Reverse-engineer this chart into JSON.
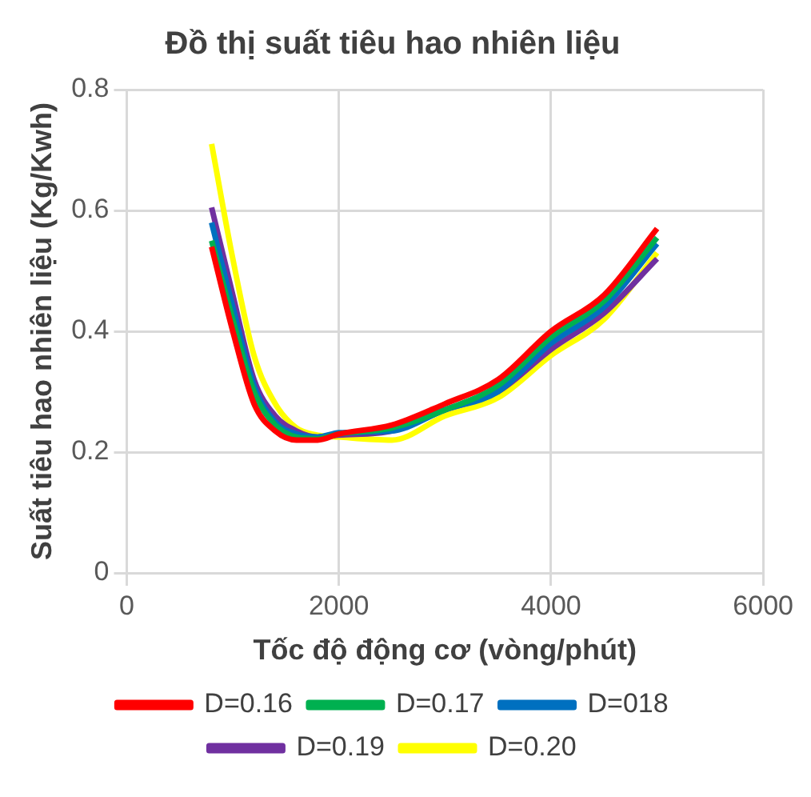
{
  "chart_data": {
    "type": "line",
    "title": "Đồ thị suất tiêu hao nhiên liệu",
    "xlabel": "Tốc độ động cơ (vòng/phút)",
    "ylabel": "Suất tiêu hao nhiên liệu (Kg/Kwh)",
    "x": [
      800,
      1000,
      1200,
      1400,
      1600,
      1800,
      2000,
      2500,
      3000,
      3500,
      4000,
      4500,
      5000
    ],
    "series": [
      {
        "name": "D=0.16",
        "color": "#ff0000",
        "values": [
          0.54,
          0.4,
          0.28,
          0.235,
          0.22,
          0.22,
          0.23,
          0.245,
          0.28,
          0.32,
          0.4,
          0.46,
          0.57
        ]
      },
      {
        "name": "D=0.17",
        "color": "#00b050",
        "values": [
          0.55,
          0.42,
          0.3,
          0.245,
          0.225,
          0.222,
          0.23,
          0.24,
          0.27,
          0.31,
          0.39,
          0.45,
          0.555
        ]
      },
      {
        "name": "D=018",
        "color": "#0070c0",
        "values": [
          0.58,
          0.44,
          0.31,
          0.25,
          0.23,
          0.225,
          0.232,
          0.235,
          0.27,
          0.3,
          0.38,
          0.44,
          0.545
        ]
      },
      {
        "name": "D=0.19",
        "color": "#7030a0",
        "values": [
          0.605,
          0.46,
          0.32,
          0.26,
          0.235,
          0.225,
          0.228,
          0.235,
          0.27,
          0.3,
          0.37,
          0.43,
          0.52
        ]
      },
      {
        "name": "D=0.20",
        "color": "#ffff00",
        "values": [
          0.71,
          0.52,
          0.36,
          0.28,
          0.24,
          0.228,
          0.225,
          0.22,
          0.26,
          0.29,
          0.36,
          0.42,
          0.53
        ]
      }
    ],
    "xlim": [
      0,
      6000
    ],
    "xticks": [
      0,
      2000,
      4000,
      6000
    ],
    "ylim": [
      0,
      0.8
    ],
    "yticks": [
      0,
      0.2,
      0.4,
      0.6,
      0.8
    ],
    "grid": true,
    "legend": "bottom",
    "marker": "none",
    "line_style": "solid"
  }
}
